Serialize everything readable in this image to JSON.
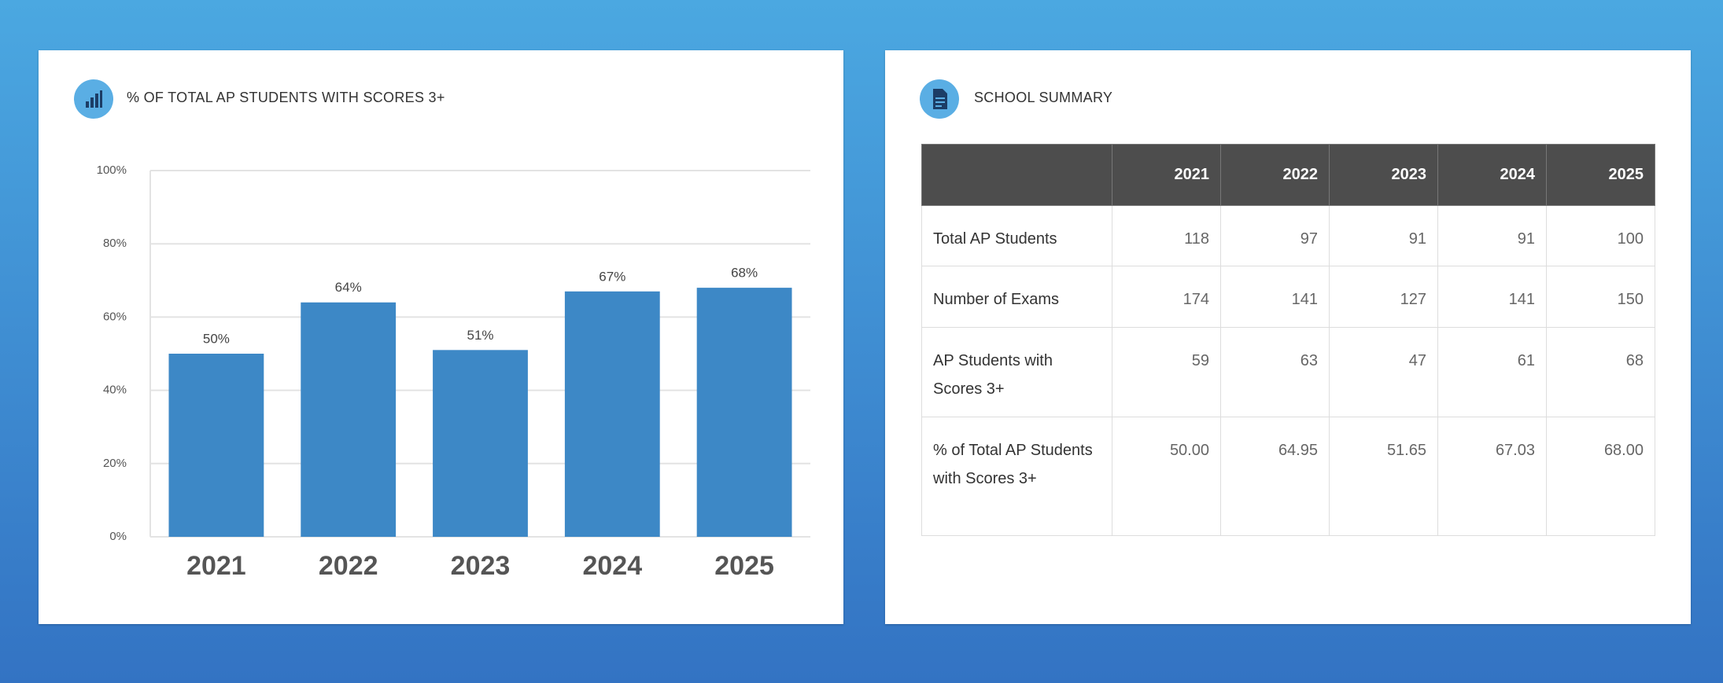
{
  "chart_data": {
    "type": "bar",
    "title": "% OF TOTAL AP STUDENTS WITH SCORES 3+",
    "categories": [
      "2021",
      "2022",
      "2023",
      "2024",
      "2025"
    ],
    "values": [
      50,
      64,
      51,
      67,
      68
    ],
    "value_labels": [
      "50%",
      "64%",
      "51%",
      "67%",
      "68%"
    ],
    "color": "#3d88c6",
    "ylim": [
      0,
      100
    ],
    "yticks": [
      {
        "value": 0,
        "label": "0%"
      },
      {
        "value": 20,
        "label": "20%"
      },
      {
        "value": 40,
        "label": "40%"
      },
      {
        "value": 60,
        "label": "60%"
      },
      {
        "value": 80,
        "label": "80%"
      },
      {
        "value": 100,
        "label": "100%"
      }
    ],
    "grid": true
  },
  "summary": {
    "title": "SCHOOL SUMMARY",
    "columns": [
      "2021",
      "2022",
      "2023",
      "2024",
      "2025"
    ],
    "rows": [
      {
        "label": "Total AP Students",
        "values": [
          "118",
          "97",
          "91",
          "91",
          "100"
        ]
      },
      {
        "label": "Number of Exams",
        "values": [
          "174",
          "141",
          "127",
          "141",
          "150"
        ]
      },
      {
        "label": "AP Students with Scores 3+",
        "values": [
          "59",
          "63",
          "47",
          "61",
          "68"
        ]
      },
      {
        "label": "% of Total AP Students with Scores 3+",
        "values": [
          "50.00",
          "64.95",
          "51.65",
          "67.03",
          "68.00"
        ]
      }
    ]
  }
}
